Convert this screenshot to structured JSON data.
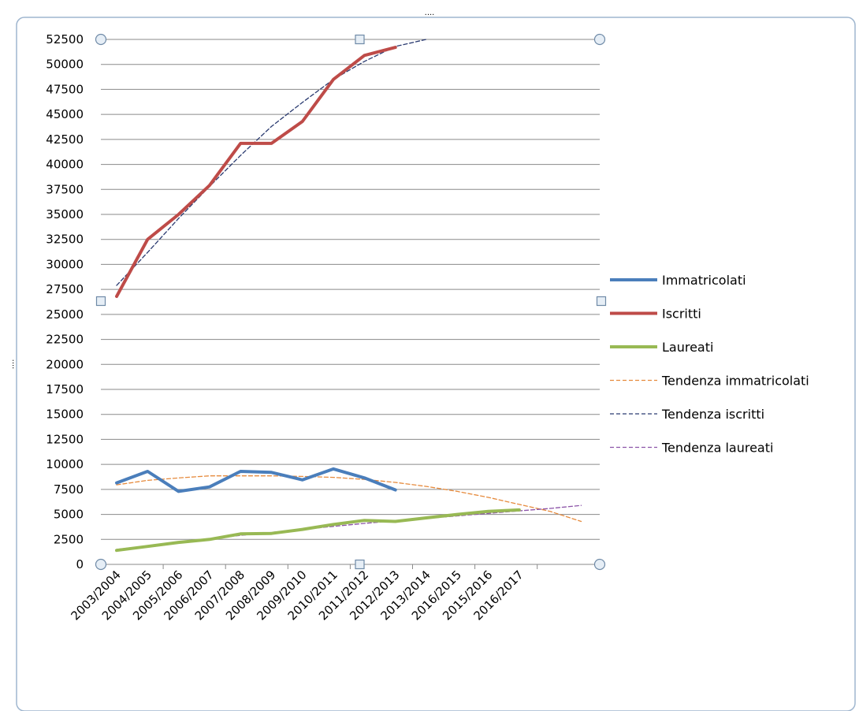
{
  "chart_data": {
    "type": "line",
    "categories": [
      "2003/2004",
      "2004/2005",
      "2005/2006",
      "2006/2007",
      "2007/2008",
      "2008/2009",
      "2009/2010",
      "2010/2011",
      "2011/2012",
      "2012/2013",
      "2013/2014",
      "2016/2015",
      "2015/2016",
      "2016/2017"
    ],
    "ylim": [
      0,
      52500
    ],
    "ytick_step": 2500,
    "grid": true,
    "legend_position": "right",
    "series": [
      {
        "name": "Immatricolati",
        "color": "#4a7ebb",
        "style": "solid",
        "x": [
          0,
          1,
          2,
          3,
          4,
          5,
          6,
          7,
          8,
          9
        ],
        "values": [
          8150,
          9300,
          7300,
          7750,
          9300,
          9200,
          8450,
          9550,
          8650,
          7450
        ]
      },
      {
        "name": "Iscritti",
        "color": "#be4b48",
        "style": "solid",
        "x": [
          0,
          1,
          2,
          3,
          4,
          5,
          6,
          7,
          8,
          9
        ],
        "values": [
          26800,
          32500,
          35000,
          37900,
          42100,
          42100,
          44300,
          48500,
          50900,
          51700
        ]
      },
      {
        "name": "Laureati",
        "color": "#98b954",
        "style": "solid",
        "x": [
          0,
          1,
          2,
          3,
          4,
          5,
          6,
          7,
          8,
          9,
          10,
          11,
          12,
          13
        ],
        "values": [
          1400,
          1800,
          2200,
          2500,
          3050,
          3100,
          3500,
          4000,
          4400,
          4300,
          4650,
          5000,
          5300,
          5450
        ]
      },
      {
        "name": "Tendenza immatricolati",
        "color": "#e68a3c",
        "style": "dashed",
        "x": [
          0,
          1,
          2,
          3,
          4,
          5,
          6,
          7,
          8,
          9,
          10,
          11,
          12,
          13,
          14,
          15
        ],
        "values": [
          7950,
          8400,
          8650,
          8850,
          8850,
          8850,
          8800,
          8700,
          8500,
          8200,
          7800,
          7300,
          6700,
          6000,
          5300,
          4300
        ]
      },
      {
        "name": "Tendenza iscritti",
        "color": "#2a3a70",
        "style": "dashed",
        "x": [
          0,
          1,
          2,
          3,
          4,
          5,
          6,
          7,
          8,
          9,
          10
        ],
        "values": [
          27900,
          31200,
          34600,
          37800,
          40900,
          43800,
          46200,
          48500,
          50300,
          51800,
          52500
        ]
      },
      {
        "name": "Tendenza laureati",
        "color": "#8c54a8",
        "style": "dashed",
        "x": [
          0,
          1,
          2,
          3,
          4,
          5,
          6,
          7,
          8,
          9,
          10,
          11,
          12,
          13,
          14,
          15
        ],
        "values": [
          1500,
          1850,
          2200,
          2550,
          2900,
          3200,
          3500,
          3800,
          4100,
          4350,
          4600,
          4850,
          5100,
          5350,
          5600,
          5900
        ]
      }
    ]
  }
}
